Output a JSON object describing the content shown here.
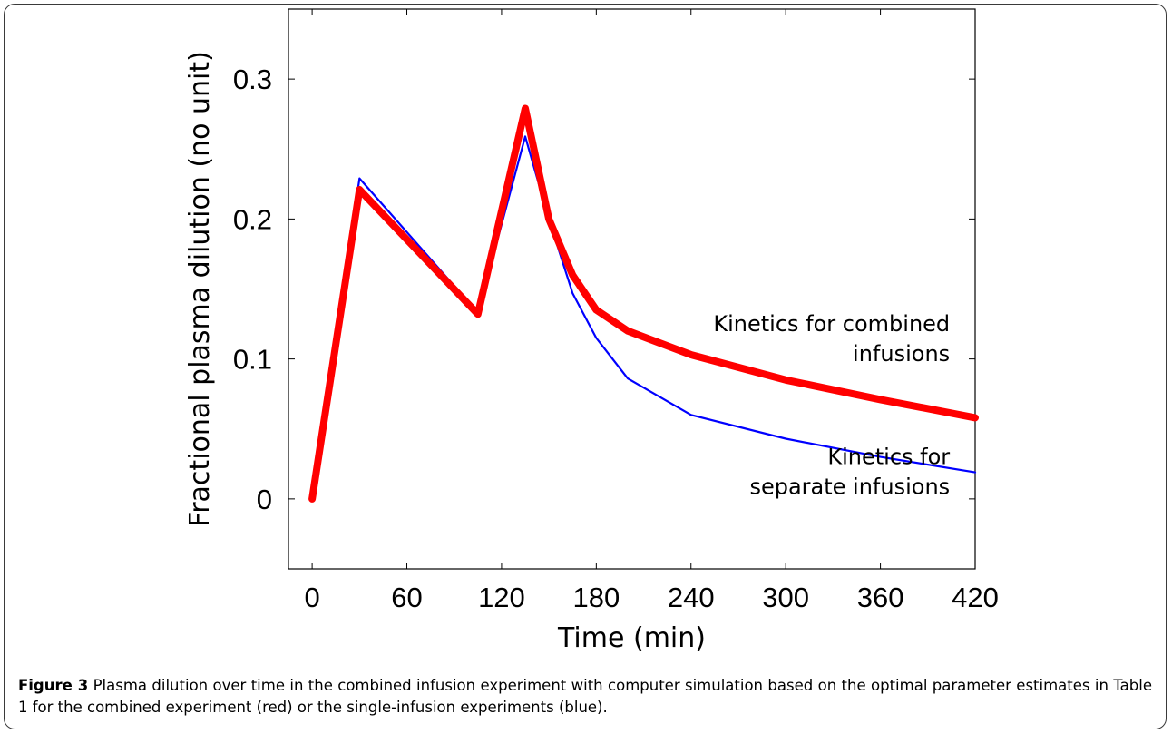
{
  "caption": {
    "label": "Figure 3",
    "text": "Plasma dilution over time in the combined infusion experiment with computer simulation based on the optimal parameter estimates in Table 1 for the combined experiment (red) or the single-infusion experiments (blue)",
    "end": "."
  },
  "chart_data": {
    "type": "line",
    "xlabel": "Time (min)",
    "ylabel": "Fractional plasma dilution (no unit)",
    "xlim": [
      -15,
      420
    ],
    "ylim": [
      -0.05,
      0.35
    ],
    "xticks": [
      0,
      60,
      120,
      180,
      240,
      300,
      360,
      420
    ],
    "yticks": [
      0,
      0.1,
      0.2,
      0.3
    ],
    "grid": false,
    "series": [
      {
        "color": "#0000ff",
        "x": [
          0,
          30,
          105,
          135,
          150,
          165,
          180,
          200,
          240,
          300,
          360,
          420
        ],
        "y": [
          0,
          0.229,
          0.133,
          0.259,
          0.2,
          0.147,
          0.115,
          0.086,
          0.06,
          0.043,
          0.03,
          0.019
        ]
      },
      {
        "color": "#ff0000",
        "x": [
          0,
          30,
          105,
          135,
          150,
          165,
          180,
          200,
          240,
          300,
          360,
          420
        ],
        "y": [
          0,
          0.221,
          0.132,
          0.279,
          0.2,
          0.16,
          0.135,
          0.12,
          0.103,
          0.085,
          0.071,
          0.058
        ]
      }
    ],
    "annotations": [
      {
        "lines": [
          "Kinetics for combined",
          "infusions"
        ],
        "x": 404,
        "y": 0.12,
        "anchor": "end"
      },
      {
        "lines": [
          "Kinetics for",
          "separate infusions"
        ],
        "x": 404,
        "y": 0.025,
        "anchor": "end"
      }
    ]
  }
}
